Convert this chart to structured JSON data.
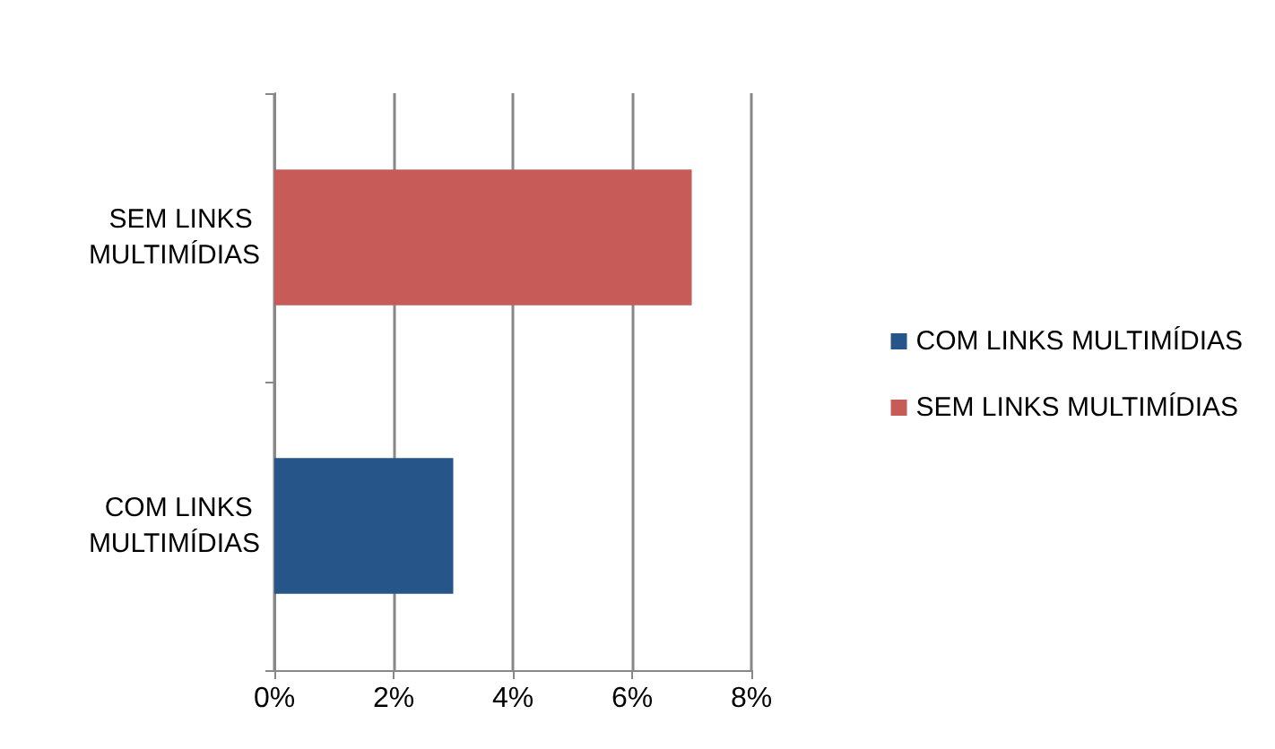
{
  "chart_data": {
    "type": "bar",
    "orientation": "horizontal",
    "stacked": true,
    "categories": [
      "SEM LINKS MULTIMÍDIAS",
      "COM LINKS MULTIMÍDIAS"
    ],
    "series": [
      {
        "name": "COM LINKS MULTIMÍDIAS",
        "color": "#255589",
        "values": [
          null,
          3
        ]
      },
      {
        "name": "SEM LINKS MULTIMÍDIAS",
        "color": "#c65b58",
        "values": [
          7,
          null
        ]
      }
    ],
    "xlim": [
      0,
      8
    ],
    "xticks": [
      {
        "value": 0,
        "label": "0%"
      },
      {
        "value": 2,
        "label": "2%"
      },
      {
        "value": 4,
        "label": "4%"
      },
      {
        "value": 6,
        "label": "6%"
      },
      {
        "value": 8,
        "label": "8%"
      }
    ],
    "grid": "x",
    "legend": "right"
  }
}
